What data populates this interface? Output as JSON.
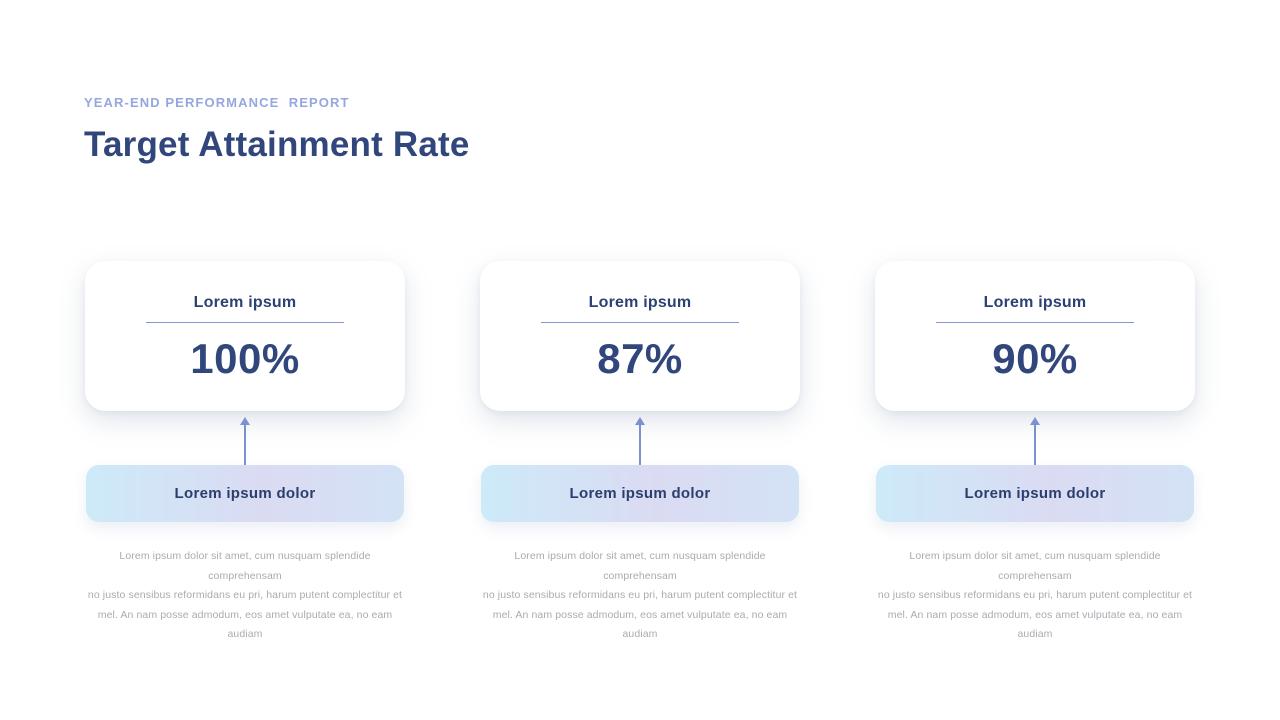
{
  "page": {
    "eyebrow": "YEAR-END PERFORMANCE  REPORT",
    "title": "Target Attainment Rate"
  },
  "colors": {
    "title_navy": "#31477C",
    "eyebrow_blue": "#94A7E0",
    "underline_blue": "#8496D8",
    "arrow_blue": "#7D90D2",
    "banner_text_navy": "#2B3F6D",
    "banner_gradient_start": "#CDEAF8",
    "banner_gradient_mid": "#DADBF2",
    "banner_gradient_end": "#D4E2F5",
    "body_text_gray": "#A9ABB1",
    "card_background": "#FFFFFF"
  },
  "columns": [
    {
      "card_label": "Lorem ipsum",
      "value": "100%",
      "banner_label": "Lorem ipsum dolor",
      "description_lines": [
        "Lorem ipsum dolor sit amet, cum nusquam splendide comprehensam",
        "no justo sensibus reformidans eu pri, harum putent complectitur et",
        "mel. An nam posse admodum, eos amet vulputate ea, no eam audiam"
      ]
    },
    {
      "card_label": "Lorem ipsum",
      "value": "87%",
      "banner_label": "Lorem ipsum dolor",
      "description_lines": [
        "Lorem ipsum dolor sit amet, cum nusquam splendide comprehensam",
        "no justo sensibus reformidans eu pri, harum putent complectitur et",
        "mel. An nam posse admodum, eos amet vulputate ea, no eam audiam"
      ]
    },
    {
      "card_label": "Lorem ipsum",
      "value": "90%",
      "banner_label": "Lorem ipsum dolor",
      "description_lines": [
        "Lorem ipsum dolor sit amet, cum nusquam splendide comprehensam",
        "no justo sensibus reformidans eu pri, harum putent complectitur et",
        "mel. An nam posse admodum, eos amet vulputate ea, no eam audiam"
      ]
    }
  ]
}
